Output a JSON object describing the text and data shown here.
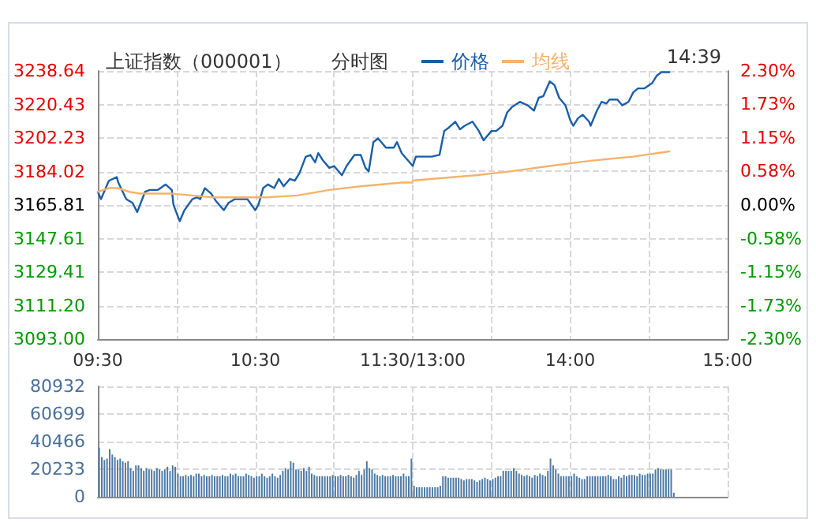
{
  "chart_data": [
    {
      "type": "line",
      "title": "上证指数（000001）",
      "subtitle": "分时图",
      "legend": "top",
      "grid": true,
      "marker": "none",
      "line_style": "solid",
      "xlim": [
        9.5,
        11.5
      ],
      "xticks": [
        {
          "value": 9.5,
          "label": "09:30"
        },
        {
          "value": 10,
          "label": null
        },
        {
          "value": 10.5,
          "label": "10:30"
        },
        {
          "value": 11,
          "label": null
        },
        {
          "value": 11.5,
          "label": "11:30/13:00"
        }
      ],
      "ylim": [
        3093.0,
        3238.64
      ],
      "yticks": [
        {
          "value": 3093.0,
          "label": "3093.00"
        },
        {
          "value": 3111.2,
          "label": "3111.20"
        },
        {
          "value": 3129.41,
          "label": "3129.41"
        },
        {
          "value": 3147.61,
          "label": "3147.61"
        },
        {
          "value": 3165.81,
          "label": "3165.81"
        },
        {
          "value": 3184.02,
          "label": "3184.02"
        },
        {
          "value": 3202.23,
          "label": "3202.23"
        },
        {
          "value": 3220.43,
          "label": "3220.43"
        },
        {
          "value": 3238.64,
          "label": "3238.64"
        }
      ],
      "series": [
        {
          "name": "价格",
          "color": "#1a5ea8",
          "x": [
            9.5,
            9.52,
            9.57,
            9.62,
            9.63,
            9.68,
            9.72,
            9.75,
            9.8,
            9.83,
            9.88,
            9.93,
            9.97,
            9.98,
            10.02,
            10.05,
            10.1,
            10.13,
            10.15,
            10.18,
            10.22,
            10.25,
            10.3,
            10.33,
            10.37,
            10.42,
            10.45,
            10.5,
            10.52,
            10.55,
            10.58,
            10.62,
            10.65,
            10.68,
            10.72,
            10.75,
            10.78,
            10.82,
            10.85,
            10.88,
            10.9,
            10.93,
            10.97,
            11,
            11.05,
            11.08,
            11.13,
            11.17,
            11.2,
            11.22,
            11.25,
            11.28,
            11.33,
            11.38,
            11.4,
            11.43,
            11.47,
            11.5
          ],
          "values": [
            3173,
            3169,
            3179,
            3181,
            3178,
            3169,
            3167,
            3162,
            3173,
            3174,
            3174,
            3177,
            3174,
            3166,
            3157,
            3163,
            3169,
            3170,
            3169,
            3175,
            3172,
            3168,
            3163,
            3167,
            3169,
            3169,
            3169,
            3163,
            3166,
            3175,
            3177,
            3175,
            3180,
            3176,
            3180,
            3179,
            3183,
            3192,
            3193,
            3189,
            3194,
            3190,
            3186,
            3187,
            3182,
            3187,
            3193,
            3193,
            3186,
            3184,
            3200,
            3202,
            3197,
            3197,
            3200,
            3194,
            3190,
            3187
          ]
        },
        {
          "name": "均线",
          "color": "#f5b26b",
          "x": [
            9.5,
            9.57,
            9.63,
            9.7,
            9.77,
            9.97,
            10.1,
            10.23,
            10.43,
            10.5,
            10.57,
            10.77,
            10.97,
            11.17,
            11.43,
            11.5
          ],
          "values": [
            3173,
            3175,
            3175,
            3173,
            3172,
            3172,
            3171,
            3170,
            3170,
            3170,
            3170,
            3171,
            3174,
            3176,
            3178,
            3178
          ]
        }
      ]
    },
    {
      "type": "line",
      "annotations": [
        "14:39"
      ],
      "grid": true,
      "marker": "none",
      "line_style": "solid",
      "xlim": [
        13,
        15
      ],
      "xticks": [
        {
          "value": 13,
          "label": null
        },
        {
          "value": 13.5,
          "label": null
        },
        {
          "value": 14,
          "label": "14:00"
        },
        {
          "value": 14.5,
          "label": null
        },
        {
          "value": 15,
          "label": "15:00"
        }
      ],
      "y2lim": [
        -2.3,
        2.3
      ],
      "y2ticks": [
        {
          "value": -2.3,
          "label": "-2.30%"
        },
        {
          "value": -1.73,
          "label": "-1.73%"
        },
        {
          "value": -1.15,
          "label": "-1.15%"
        },
        {
          "value": -0.58,
          "label": "-0.58%"
        },
        {
          "value": 0,
          "label": "0.00%"
        },
        {
          "value": 0.58,
          "label": "0.58%"
        },
        {
          "value": 1.15,
          "label": "1.15%"
        },
        {
          "value": 1.73,
          "label": "1.73%"
        },
        {
          "value": 2.3,
          "label": "2.30%"
        }
      ],
      "series": [
        {
          "color": "#1a5ea8",
          "axis": "y2",
          "x": [
            13,
            13.02,
            13.07,
            13.12,
            13.17,
            13.2,
            13.23,
            13.27,
            13.3,
            13.33,
            13.38,
            13.42,
            13.45,
            13.5,
            13.53,
            13.57,
            13.6,
            13.63,
            13.68,
            13.73,
            13.77,
            13.8,
            13.83,
            13.87,
            13.9,
            13.93,
            13.97,
            14,
            14.02,
            14.05,
            14.08,
            14.12,
            14.13,
            14.17,
            14.2,
            14.23,
            14.25,
            14.3,
            14.33,
            14.37,
            14.4,
            14.43,
            14.47,
            14.52,
            14.55,
            14.58,
            14.63
          ],
          "values": [
            0.67,
            0.83,
            0.83,
            0.83,
            0.86,
            1.27,
            1.33,
            1.43,
            1.3,
            1.36,
            1.43,
            1.27,
            1.11,
            1.27,
            1.27,
            1.36,
            1.59,
            1.68,
            1.77,
            1.71,
            1.62,
            1.84,
            1.87,
            2.12,
            2.06,
            1.84,
            1.71,
            1.46,
            1.36,
            1.49,
            1.55,
            1.43,
            1.36,
            1.62,
            1.77,
            1.74,
            1.81,
            1.81,
            1.71,
            1.77,
            1.93,
            2.0,
            2.0,
            2.09,
            2.22,
            2.28,
            2.28
          ]
        },
        {
          "color": "#f5b26b",
          "axis": "y2",
          "x": [
            13,
            13.13,
            13.4,
            13.6,
            13.87,
            14.13,
            14.4,
            14.63
          ],
          "values": [
            0.42,
            0.45,
            0.51,
            0.57,
            0.67,
            0.76,
            0.83,
            0.92
          ]
        }
      ]
    },
    {
      "type": "bar",
      "grid": true,
      "tick_labels": "y",
      "categories": [
        null,
        null,
        null,
        null,
        null,
        null,
        null,
        null,
        null,
        null,
        null,
        null,
        null,
        null,
        null,
        null,
        null,
        null,
        null,
        null,
        null,
        null,
        null,
        null,
        null,
        null,
        null,
        null,
        null,
        null,
        null,
        null,
        null,
        null,
        null,
        null,
        null,
        null,
        null,
        null,
        null,
        null,
        null,
        null,
        null,
        null,
        null,
        null,
        null,
        null,
        null,
        null,
        null,
        null,
        null,
        null,
        null,
        null,
        null,
        null,
        null,
        null,
        null,
        null,
        null,
        null,
        null,
        null,
        null,
        null,
        null,
        null,
        null,
        null,
        null,
        null,
        null,
        null,
        null,
        null,
        null,
        null,
        null,
        null,
        null,
        null,
        null,
        null,
        null,
        null,
        null,
        null,
        null,
        null,
        null,
        null,
        null,
        null,
        null,
        null,
        null,
        null,
        null,
        null,
        null,
        null,
        null,
        null,
        null,
        null,
        null,
        null,
        null,
        null,
        null,
        null,
        null,
        null,
        null,
        null,
        null,
        null,
        null,
        null,
        null,
        null,
        null,
        null,
        null,
        null,
        null,
        null,
        null,
        null,
        null,
        null,
        null,
        null,
        null,
        null,
        null,
        null,
        null,
        null,
        null,
        null,
        null,
        null,
        null,
        null,
        null,
        null,
        null,
        null,
        null,
        null,
        null,
        null,
        null,
        null,
        null,
        null,
        null,
        null,
        null,
        null,
        null,
        null,
        null,
        null,
        null,
        null,
        null,
        null,
        null,
        null,
        null,
        null,
        null,
        null,
        null,
        null,
        null,
        null,
        null,
        null,
        null,
        null,
        null,
        null,
        null,
        null,
        null,
        null,
        null,
        null,
        null,
        null,
        null,
        null,
        null,
        null,
        null,
        null,
        null,
        null,
        null,
        null,
        null,
        null,
        null,
        null,
        null,
        null,
        null,
        null,
        null,
        null,
        null,
        null,
        null,
        null,
        null,
        null,
        null,
        null,
        null,
        null,
        null,
        null,
        null,
        null,
        null,
        null,
        null,
        null,
        null,
        null,
        null,
        null
      ],
      "ylim": [
        0,
        80932
      ],
      "yticks": [
        0,
        20233,
        40466,
        60699,
        80932
      ],
      "series": [
        {
          "color": "#4f7aa4",
          "values": [
            36000,
            29000,
            27000,
            28000,
            35000,
            31000,
            29000,
            27000,
            28000,
            26000,
            25000,
            26000,
            21000,
            19000,
            23000,
            23000,
            21000,
            19000,
            21000,
            20000,
            20000,
            19000,
            21000,
            20000,
            19000,
            20000,
            22000,
            19000,
            23000,
            22000,
            17000,
            15000,
            15000,
            16000,
            15000,
            16000,
            15000,
            17000,
            17000,
            15000,
            16000,
            15000,
            15000,
            16000,
            15000,
            15000,
            15000,
            16000,
            15000,
            15000,
            17000,
            16000,
            17000,
            15000,
            15000,
            15000,
            17000,
            16000,
            15000,
            14000,
            15000,
            15000,
            17000,
            15000,
            14000,
            15000,
            17000,
            15000,
            14000,
            16000,
            19000,
            21000,
            20000,
            26000,
            25000,
            20000,
            20000,
            19000,
            21000,
            19000,
            22000,
            17000,
            16000,
            15000,
            15000,
            15000,
            15000,
            15000,
            15000,
            16000,
            15000,
            15000,
            16000,
            15000,
            15000,
            16000,
            15000,
            14000,
            16000,
            19000,
            16000,
            20000,
            26000,
            21000,
            20000,
            17000,
            16000,
            15000,
            16000,
            15000,
            15000,
            15000,
            16000,
            15000,
            15000,
            15000,
            17000,
            15000,
            15000,
            28000,
            8000,
            7000,
            7000,
            7000,
            7000,
            7000,
            7000,
            7000,
            7000,
            7000,
            8000,
            15000,
            15000,
            14000,
            14000,
            14000,
            14000,
            14000,
            13000,
            12000,
            13000,
            13000,
            13000,
            12000,
            11000,
            12000,
            13000,
            14000,
            13000,
            12000,
            13000,
            14000,
            15000,
            15000,
            19000,
            19000,
            19000,
            19000,
            21000,
            19000,
            17000,
            16000,
            15000,
            16000,
            15000,
            14000,
            16000,
            15000,
            17000,
            16000,
            15000,
            19000,
            28000,
            23000,
            20000,
            17000,
            15000,
            15000,
            15000,
            15000,
            15000,
            17000,
            15000,
            14000,
            13000,
            13000,
            15000,
            15000,
            15000,
            15000,
            15000,
            15000,
            15000,
            15000,
            16000,
            15000,
            13000,
            13000,
            15000,
            14000,
            16000,
            15000,
            16000,
            16000,
            16000,
            15000,
            17000,
            16000,
            16000,
            17000,
            17000,
            17000,
            20000,
            21000,
            20000,
            20000,
            20000,
            20000,
            20000,
            3000,
            null,
            null,
            null,
            null,
            null,
            null,
            null,
            null,
            null,
            null,
            null,
            null,
            null,
            null,
            null,
            null,
            null,
            null,
            null,
            null
          ]
        }
      ]
    }
  ]
}
